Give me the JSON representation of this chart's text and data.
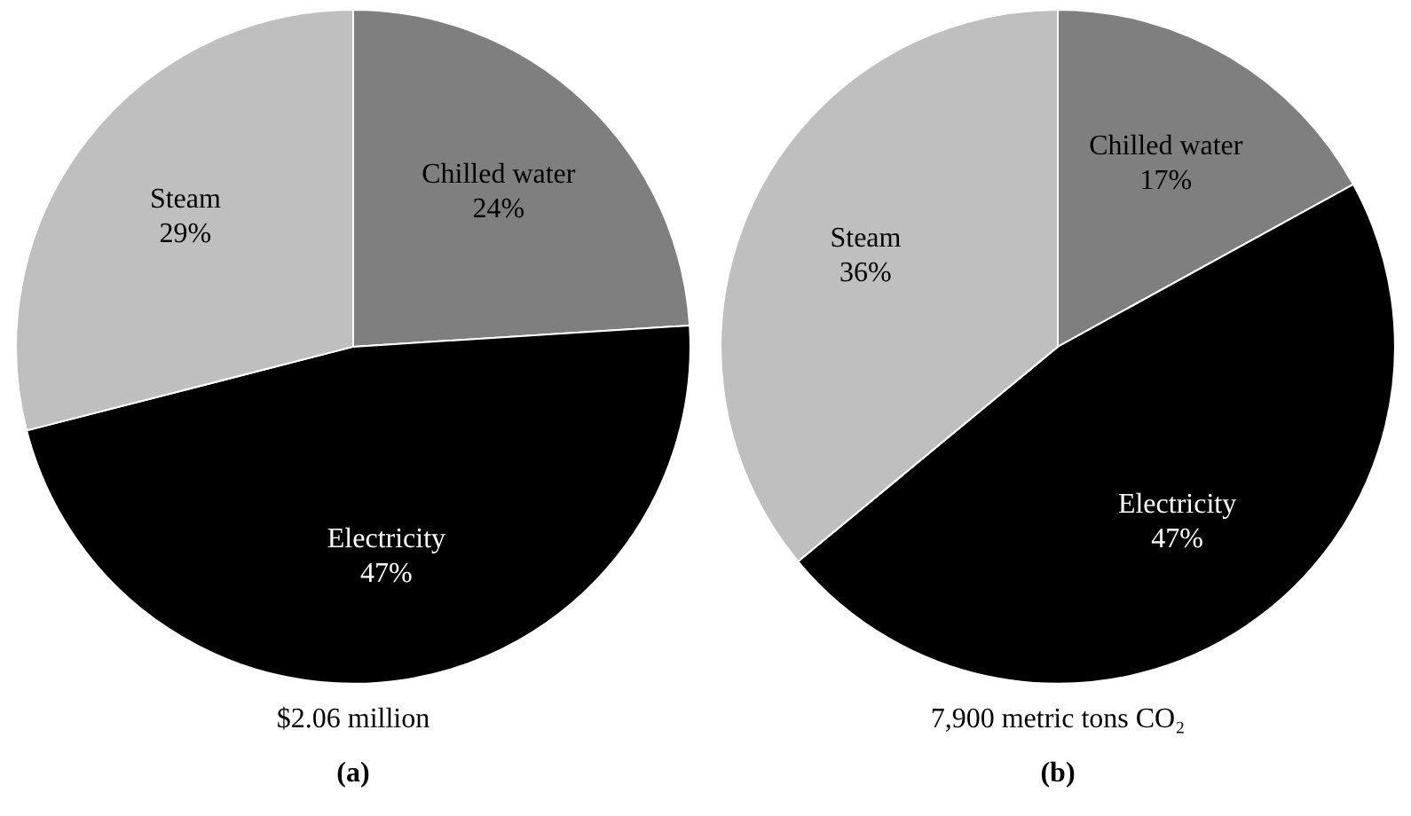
{
  "chart_data": [
    {
      "type": "pie",
      "title": "(a)",
      "subtitle": "$2.06 million",
      "categories": [
        "Chilled water",
        "Electricity",
        "Steam"
      ],
      "values": [
        24,
        47,
        29
      ],
      "value_labels": [
        "24%",
        "47%",
        "29%"
      ],
      "colors": [
        "#7f7f7f",
        "#000000",
        "#bfbfbf"
      ]
    },
    {
      "type": "pie",
      "title": "(b)",
      "subtitle": "7,900 metric tons CO₂",
      "categories": [
        "Chilled water",
        "Electricity",
        "Steam"
      ],
      "values": [
        17,
        47,
        36
      ],
      "value_labels": [
        "17%",
        "47%",
        "36%"
      ],
      "colors": [
        "#7f7f7f",
        "#000000",
        "#bfbfbf"
      ]
    }
  ]
}
